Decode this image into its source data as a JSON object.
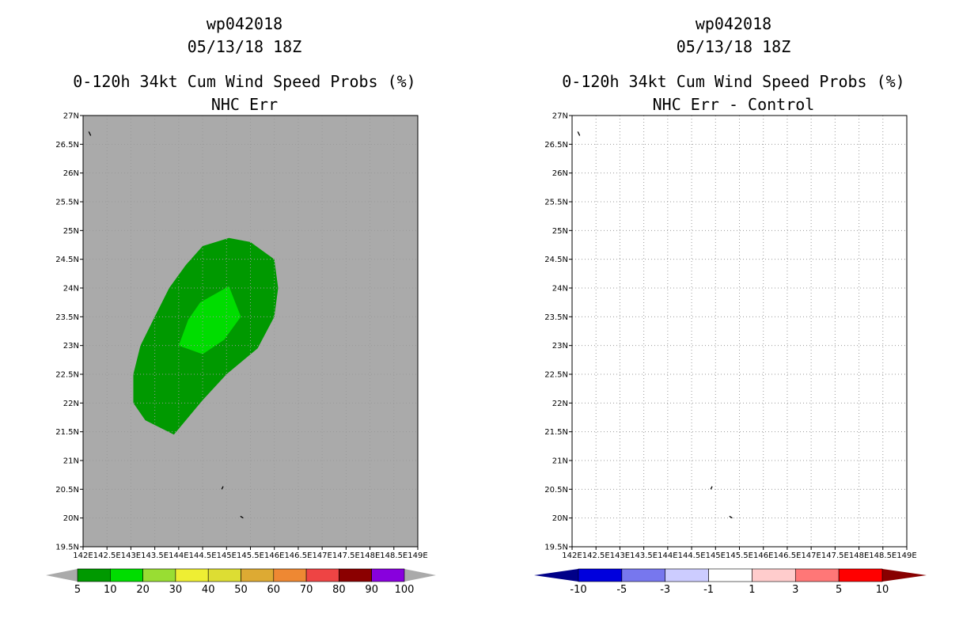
{
  "chart_data": [
    {
      "type": "heatmap",
      "title": "wp042018",
      "subtitle": "05/13/18 18Z",
      "heading": "0-120h 34kt Cum Wind Speed Probs (%)",
      "subheading": "NHC Err",
      "xlim": [
        142,
        149
      ],
      "ylim": [
        19.5,
        27
      ],
      "x_ticks": [
        "142E",
        "142.5E",
        "143E",
        "143.5E",
        "144E",
        "144.5E",
        "145E",
        "145.5E",
        "146E",
        "146.5E",
        "147E",
        "147.5E",
        "148E",
        "148.5E",
        "149E"
      ],
      "y_ticks": [
        "19.5N",
        "20N",
        "20.5N",
        "21N",
        "21.5N",
        "22N",
        "22.5N",
        "23N",
        "23.5N",
        "24N",
        "24.5N",
        "25N",
        "25.5N",
        "26N",
        "26.5N",
        "27N"
      ],
      "background_color": "#aaaaaa",
      "contours": [
        {
          "level": 5,
          "color": "#009900",
          "points": [
            [
              144.5,
              24.73
            ],
            [
              145.05,
              24.87
            ],
            [
              145.5,
              24.8
            ],
            [
              146.0,
              24.5
            ],
            [
              146.08,
              24.0
            ],
            [
              146.0,
              23.5
            ],
            [
              145.65,
              22.95
            ],
            [
              145.0,
              22.5
            ],
            [
              144.5,
              22.05
            ],
            [
              143.9,
              21.45
            ],
            [
              143.3,
              21.7
            ],
            [
              143.05,
              22.0
            ],
            [
              143.05,
              22.5
            ],
            [
              143.2,
              23.0
            ],
            [
              143.5,
              23.5
            ],
            [
              143.8,
              24.0
            ],
            [
              144.15,
              24.4
            ]
          ]
        },
        {
          "level": 10,
          "color": "#00dd00",
          "points": [
            [
              144.2,
              23.45
            ],
            [
              144.45,
              23.75
            ],
            [
              145.05,
              24.03
            ],
            [
              145.3,
              23.5
            ],
            [
              144.95,
              23.1
            ],
            [
              144.5,
              22.85
            ],
            [
              144.0,
              23.0
            ]
          ]
        }
      ],
      "colorbar": {
        "labels": [
          "5",
          "10",
          "20",
          "30",
          "40",
          "50",
          "60",
          "70",
          "80",
          "90",
          "100"
        ],
        "colors": [
          "#009900",
          "#00dd00",
          "#99dd33",
          "#eeee33",
          "#dddd33",
          "#ddaa33",
          "#ee8833",
          "#ee4444",
          "#8b0000",
          "#8800dd"
        ],
        "under_color": "#aaaaaa",
        "over_color": "#aaaaaa"
      }
    },
    {
      "type": "heatmap",
      "title": "wp042018",
      "subtitle": "05/13/18 18Z",
      "heading": "0-120h 34kt Cum Wind Speed Probs (%)",
      "subheading": "NHC Err - Control",
      "xlim": [
        142,
        149
      ],
      "ylim": [
        19.5,
        27
      ],
      "x_ticks": [
        "142E",
        "142.5E",
        "143E",
        "143.5E",
        "144E",
        "144.5E",
        "145E",
        "145.5E",
        "146E",
        "146.5E",
        "147E",
        "147.5E",
        "148E",
        "148.5E",
        "149E"
      ],
      "y_ticks": [
        "19.5N",
        "20N",
        "20.5N",
        "21N",
        "21.5N",
        "22N",
        "22.5N",
        "23N",
        "23.5N",
        "24N",
        "24.5N",
        "25N",
        "25.5N",
        "26N",
        "26.5N",
        "27N"
      ],
      "background_color": "#ffffff",
      "contours": [],
      "colorbar": {
        "labels": [
          "-10",
          "-5",
          "-3",
          "-1",
          "1",
          "3",
          "5",
          "10"
        ],
        "colors": [
          "#0000dd",
          "#7777ee",
          "#ccccff",
          "#ffffff",
          "#ffcccc",
          "#ff7777",
          "#ff0000"
        ],
        "under_color": "#000088",
        "over_color": "#880000"
      }
    }
  ]
}
